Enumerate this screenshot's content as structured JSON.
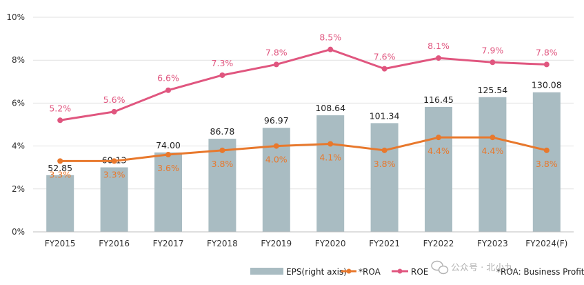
{
  "colors": {
    "bar": "#a9bcc2",
    "roa": "#e8782c",
    "roe": "#e0567f",
    "grid": "#e1e1e1",
    "axis": "#bdbdbd"
  },
  "chart_data": {
    "type": "bar",
    "categories": [
      "FY2015",
      "FY2016",
      "FY2017",
      "FY2018",
      "FY2019",
      "FY2020",
      "FY2021",
      "FY2022",
      "FY2023",
      "FY2024(F)"
    ],
    "series": [
      {
        "name": "EPS(right axis)",
        "type": "bar",
        "axis": "right",
        "values": [
          52.85,
          60.13,
          74.0,
          86.78,
          96.97,
          108.64,
          101.34,
          116.45,
          125.54,
          130.08
        ],
        "labels": [
          "52.85",
          "60.13",
          "74.00",
          "86.78",
          "96.97",
          "108.64",
          "101.34",
          "116.45",
          "125.54",
          "130.08"
        ]
      },
      {
        "name": "*ROA",
        "type": "line",
        "axis": "left",
        "values": [
          3.3,
          3.3,
          3.6,
          3.8,
          4.0,
          4.1,
          3.8,
          4.4,
          4.4,
          3.8
        ],
        "labels": [
          "3.3%",
          "3.3%",
          "3.6%",
          "3.8%",
          "4.0%",
          "4.1%",
          "3.8%",
          "4.4%",
          "4.4%",
          "3.8%"
        ]
      },
      {
        "name": "ROE",
        "type": "line",
        "axis": "left",
        "values": [
          5.2,
          5.6,
          6.6,
          7.3,
          7.8,
          8.5,
          7.6,
          8.1,
          7.9,
          7.8
        ],
        "labels": [
          "5.2%",
          "5.6%",
          "6.6%",
          "7.3%",
          "7.8%",
          "8.5%",
          "7.6%",
          "8.1%",
          "7.9%",
          "7.8%"
        ]
      }
    ],
    "y_left": {
      "ticks": [
        0,
        2,
        4,
        6,
        8,
        10
      ],
      "tick_labels": [
        "0%",
        "2%",
        "4%",
        "6%",
        "8%",
        "10%"
      ],
      "ylim": [
        0,
        10
      ]
    },
    "y_right": {
      "ylim": [
        0,
        200
      ],
      "shown": false
    },
    "grid": true,
    "legend": {
      "position": "bottom-right",
      "entries": [
        "EPS(right axis)",
        "*ROA",
        "ROE",
        "*ROA: Business Profit"
      ]
    }
  },
  "watermark": {
    "text": "公众号 · 北小九",
    "icon": "wechat-icon"
  }
}
